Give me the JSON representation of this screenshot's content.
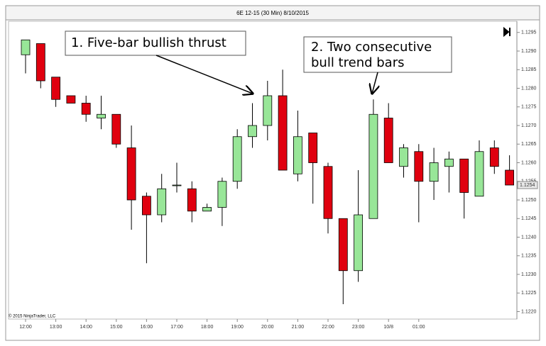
{
  "chart_data": {
    "type": "candlestick",
    "title": "6E 12-15 (30 Min)  8/10/2015",
    "copyright": "© 2015 NinjaTrader, LLC",
    "categories": [
      "12:00",
      null,
      "13:00",
      null,
      "14:00",
      null,
      "15:00",
      null,
      "16:00",
      null,
      "17:00",
      null,
      "18:00",
      null,
      "19:00",
      null,
      "20:00",
      null,
      "21:00",
      null,
      "22:00",
      null,
      "23:00",
      null,
      "10/8",
      null,
      "01:00",
      null,
      null,
      null,
      null,
      null,
      null
    ],
    "open": [
      1.1289,
      1.1292,
      1.1283,
      1.1278,
      1.1276,
      1.1272,
      1.1273,
      1.1264,
      1.1251,
      1.1246,
      1.1254,
      1.1253,
      1.1247,
      1.1248,
      1.1255,
      1.1267,
      1.127,
      1.1278,
      1.1257,
      1.1268,
      1.1259,
      1.1245,
      1.1231,
      1.1245,
      1.1272,
      1.1259,
      1.1263,
      1.1255,
      1.1259,
      1.1261,
      1.1251,
      1.1264,
      1.1258
    ],
    "high": [
      1.1293,
      1.1292,
      1.1283,
      1.1278,
      1.1278,
      1.1278,
      1.1273,
      1.127,
      1.1252,
      1.1257,
      1.126,
      1.1255,
      1.1249,
      1.1256,
      1.1269,
      1.1276,
      1.1282,
      1.1285,
      1.1274,
      1.1268,
      1.126,
      1.1245,
      1.1258,
      1.1277,
      1.1276,
      1.1265,
      1.1265,
      1.1264,
      1.1263,
      1.1261,
      1.1266,
      1.1266,
      1.1262
    ],
    "low": [
      1.1284,
      1.128,
      1.1275,
      1.1276,
      1.1271,
      1.1269,
      1.1264,
      1.1242,
      1.1233,
      1.1244,
      1.1252,
      1.1244,
      1.1247,
      1.1243,
      1.1253,
      1.1264,
      1.1266,
      1.1258,
      1.1255,
      1.1249,
      1.1241,
      1.1222,
      1.1228,
      1.1245,
      1.126,
      1.1256,
      1.1244,
      1.125,
      1.1252,
      1.1245,
      1.1251,
      1.1257,
      1.1254
    ],
    "close": [
      1.1293,
      1.1282,
      1.1277,
      1.1276,
      1.1273,
      1.1273,
      1.1265,
      1.125,
      1.1246,
      1.1253,
      1.1254,
      1.1247,
      1.1248,
      1.1255,
      1.1267,
      1.127,
      1.1278,
      1.1258,
      1.1267,
      1.126,
      1.1245,
      1.1231,
      1.1246,
      1.1273,
      1.126,
      1.1264,
      1.1255,
      1.126,
      1.1261,
      1.1252,
      1.1263,
      1.1259,
      1.1254
    ],
    "up_color": "#98e698",
    "down_color": "#e0000f",
    "last_price": 1.1254,
    "ylim": [
      1.1218,
      1.1298
    ],
    "yticks": [
      {
        "value": 1.122,
        "label": "1.1220"
      },
      1.1225,
      {
        "value": 1.123,
        "label": "1.1230"
      },
      1.1235,
      {
        "value": 1.124,
        "label": "1.1240"
      },
      1.1245,
      {
        "value": 1.125,
        "label": "1.1250"
      },
      1.1255,
      {
        "value": 1.126,
        "label": "1.1260"
      },
      1.1265,
      {
        "value": 1.127,
        "label": "1.1270"
      },
      1.1275,
      {
        "value": 1.128,
        "label": "1.1280"
      },
      1.1285,
      {
        "value": 1.129,
        "label": "1.1290"
      },
      1.1295
    ],
    "annotations": [
      {
        "lines": [
          "1. Five-bar bullish thrust"
        ]
      },
      {
        "lines": [
          "2. Two consecutive",
          "bull trend bars"
        ]
      }
    ]
  }
}
